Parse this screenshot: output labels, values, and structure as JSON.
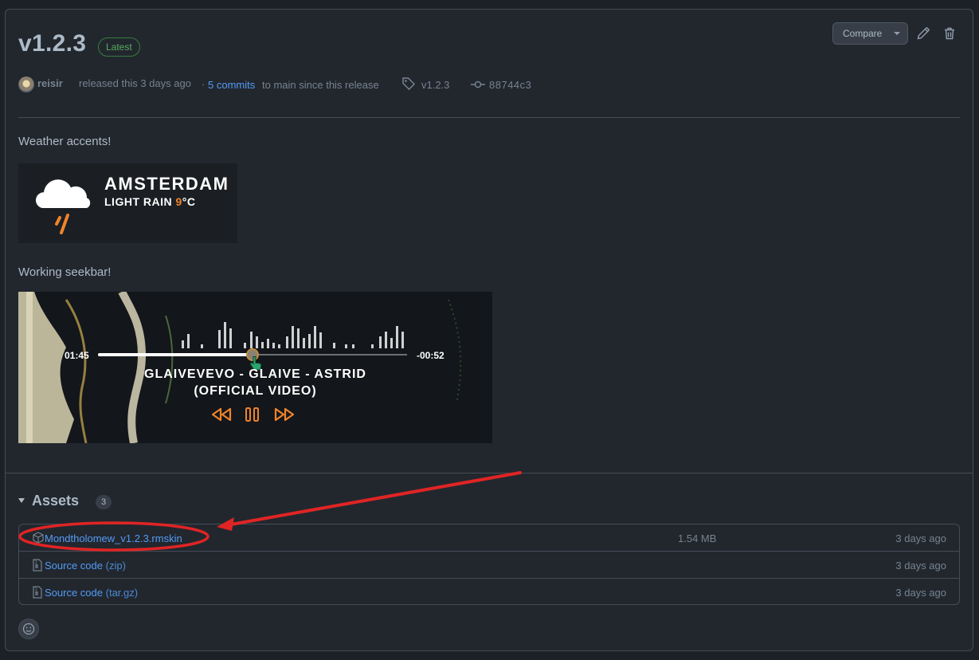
{
  "release": {
    "tag_title": "v1.2.3",
    "latest_badge": "Latest",
    "compare_label": "Compare",
    "author": "reisir",
    "released_text": "released this 3 days ago",
    "separator": "·",
    "commits_link": "5 commits",
    "commits_suffix": "to main since this release",
    "tag_label": "v1.2.3",
    "commit_hash": "88744c3"
  },
  "body": {
    "para1": "Weather accents!",
    "weather_widget": {
      "city": "AMSTERDAM",
      "condition": "LIGHT RAIN",
      "temp": "9",
      "unit": "°C"
    },
    "para2": "Working seekbar!",
    "player_widget": {
      "elapsed": "01:45",
      "remaining": "-00:52",
      "progress": 0.5,
      "title_line1": "GLAIVEVEVO - GLAIVE - ASTRID",
      "title_line2": "(OFFICIAL VIDEO)"
    }
  },
  "assets": {
    "header": "Assets",
    "count": "3",
    "items": [
      {
        "name": "Mondtholomew_v1.2.3.rmskin",
        "suffix": "",
        "size": "1.54 MB",
        "date": "3 days ago",
        "icon": "package-icon"
      },
      {
        "name": "Source code",
        "suffix": "(zip)",
        "size": "",
        "date": "3 days ago",
        "icon": "file-zip-icon"
      },
      {
        "name": "Source code",
        "suffix": "(tar.gz)",
        "size": "",
        "date": "3 days ago",
        "icon": "file-zip-icon"
      }
    ]
  },
  "colors": {
    "background": "#22272e",
    "accent_link": "#539bf5",
    "latest_green": "#57ab5a",
    "annotation_red": "#e02424",
    "player_orange": "#f0832a"
  }
}
